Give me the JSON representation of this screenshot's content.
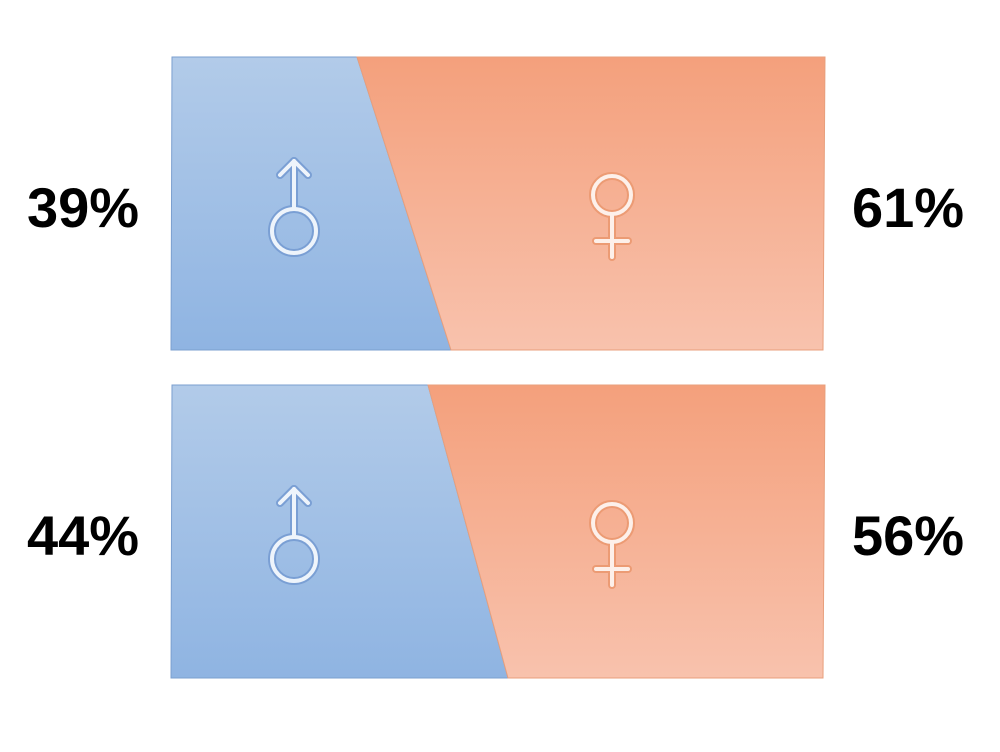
{
  "chart_data": [
    {
      "type": "bar",
      "orientation": "horizontal-stacked",
      "categories": [
        "male",
        "female"
      ],
      "values": [
        39,
        61
      ],
      "labels": [
        "39%",
        "61%"
      ],
      "icons": [
        "male-symbol-icon",
        "female-symbol-icon"
      ],
      "colors": [
        "#9dbde6",
        "#f6b296"
      ]
    },
    {
      "type": "bar",
      "orientation": "horizontal-stacked",
      "categories": [
        "male",
        "female"
      ],
      "values": [
        44,
        56
      ],
      "labels": [
        "44%",
        "56%"
      ],
      "icons": [
        "male-symbol-icon",
        "female-symbol-icon"
      ],
      "colors": [
        "#9dbde6",
        "#f6b296"
      ]
    }
  ],
  "colors": {
    "male_top": "#b2cbe9",
    "male_bottom": "#8fb4e2",
    "male_border": "#7b9fcf",
    "male_symbol_fill": "#eef4fb",
    "male_symbol_stroke": "#7a9fd4",
    "female_top": "#f4a07c",
    "female_bottom": "#f8c2ad",
    "female_border": "#e89f7c",
    "female_symbol_fill": "#fdf0ea",
    "female_symbol_stroke": "#ec9b74"
  }
}
